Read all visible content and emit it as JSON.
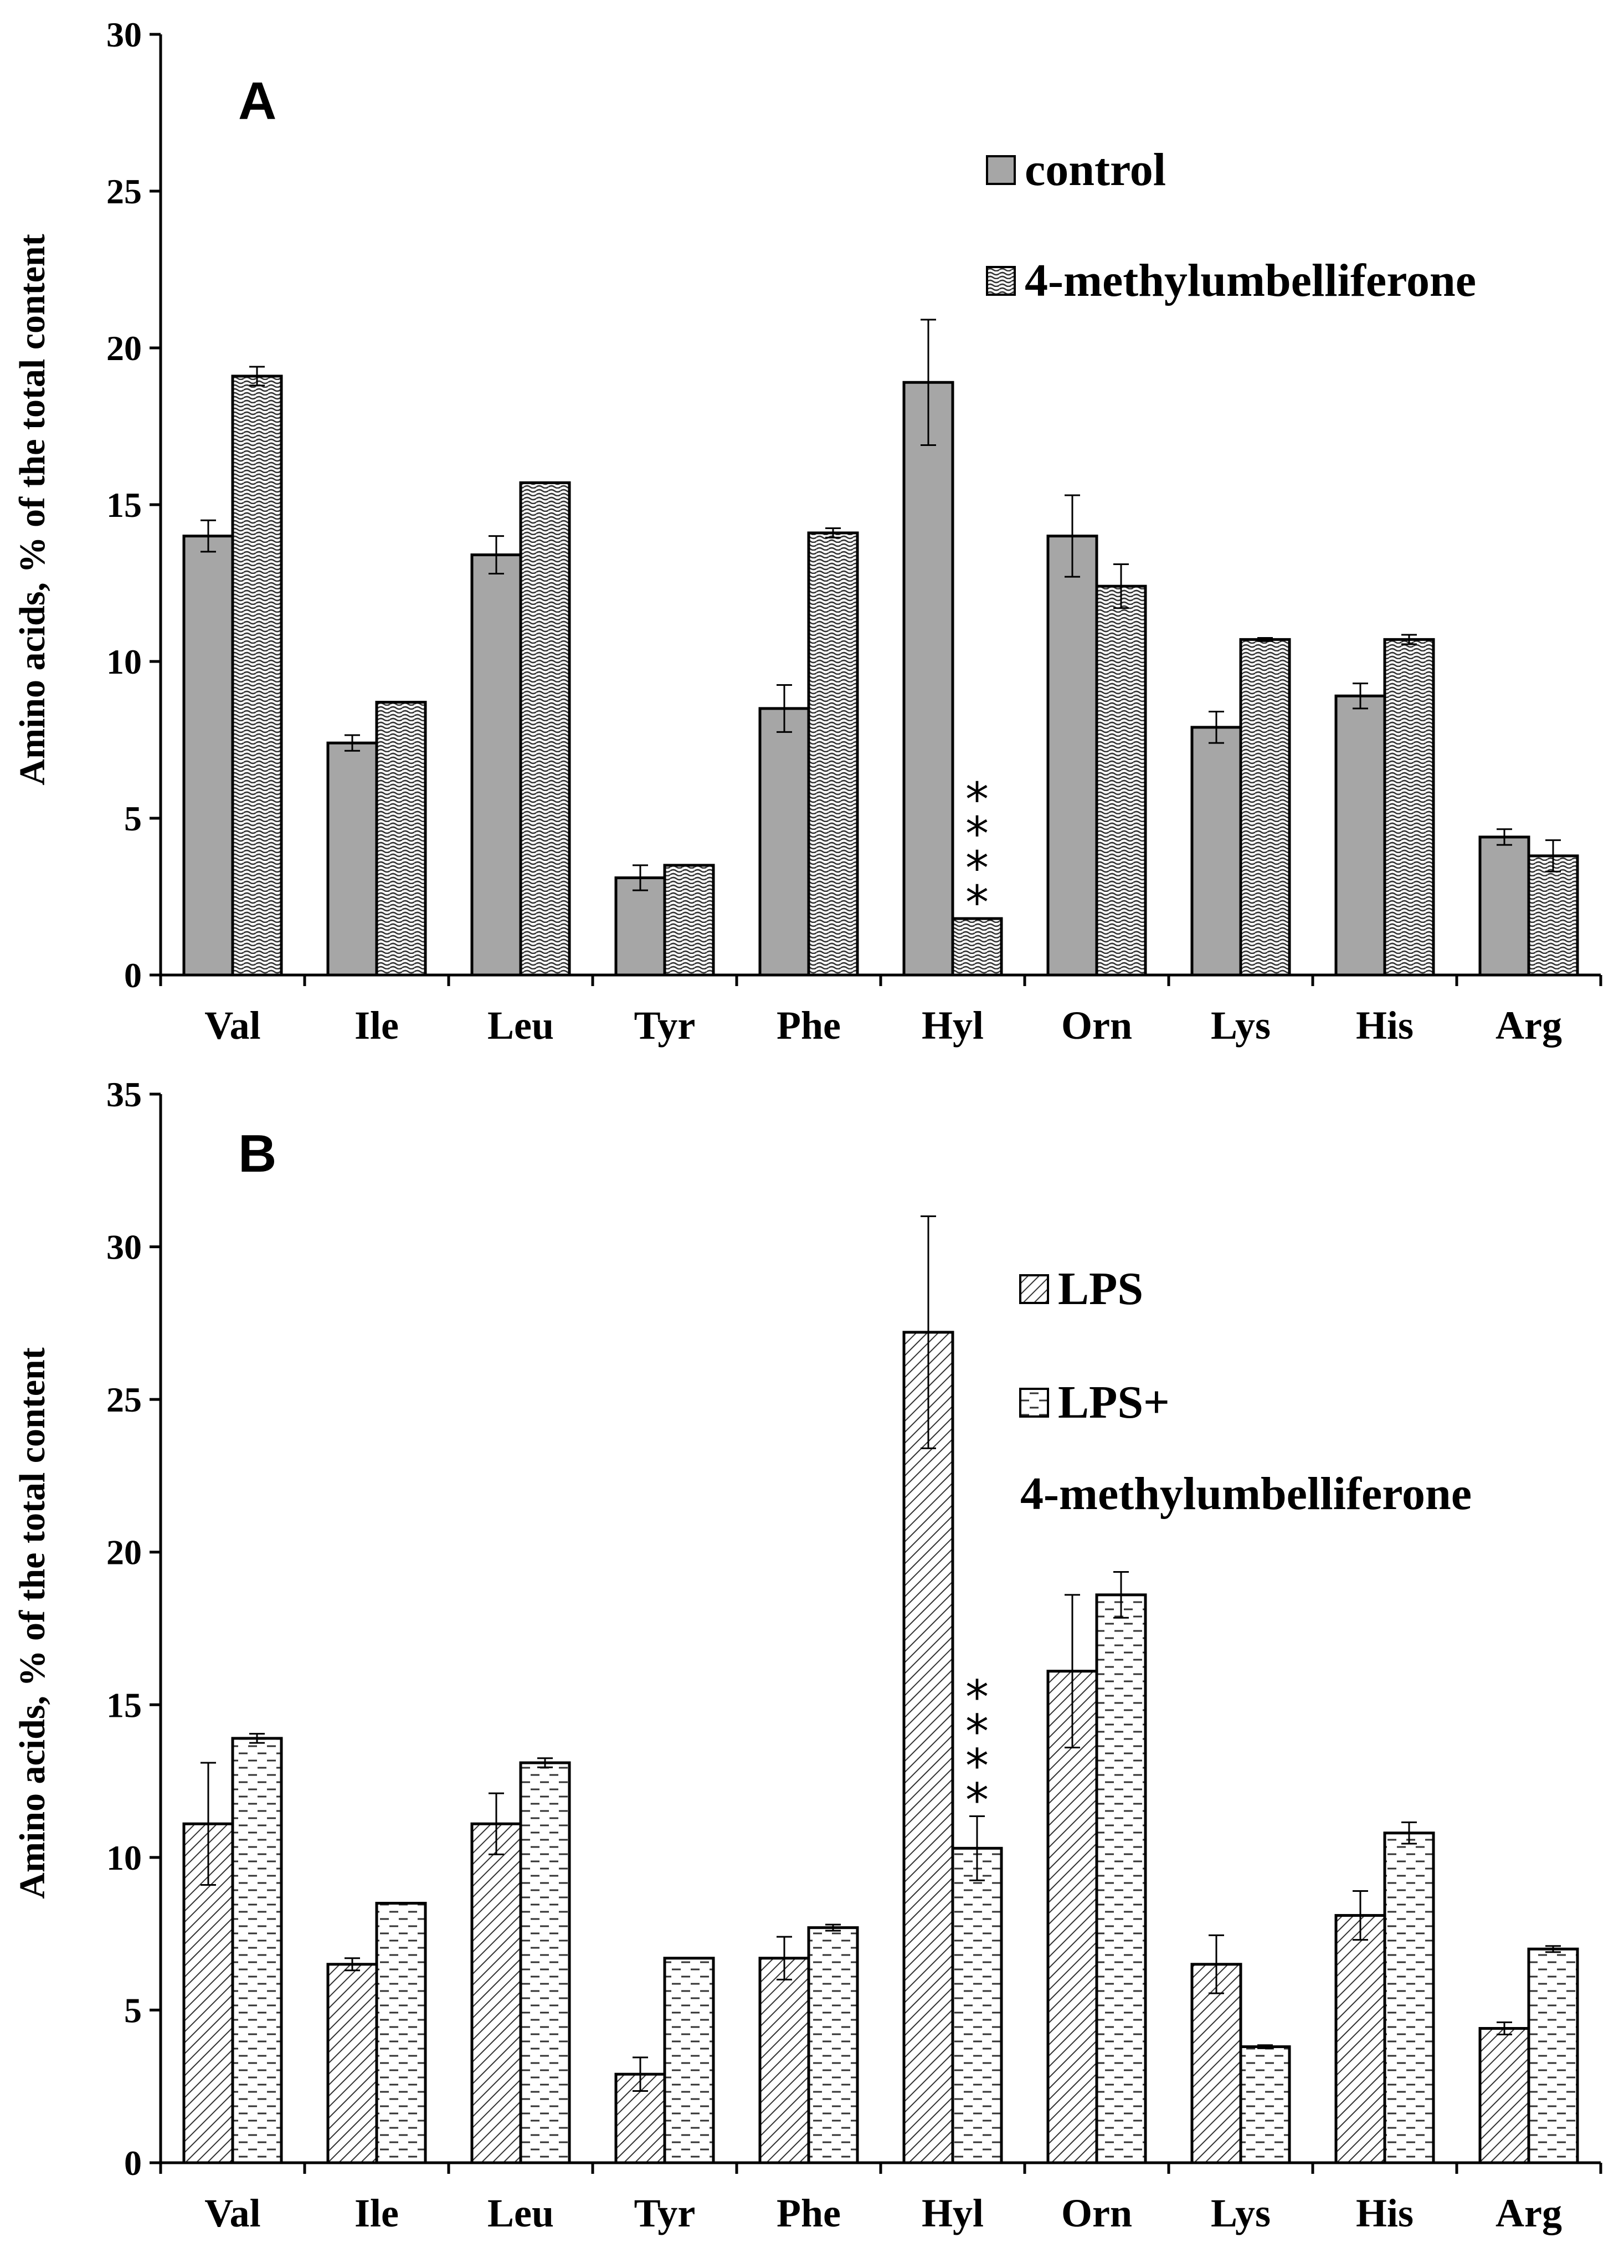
{
  "chart_data": [
    {
      "type": "bar",
      "panel": "A",
      "title": "",
      "xlabel": "",
      "ylabel": "Amino acids, % of the total content",
      "ylim": [
        0,
        30
      ],
      "yticks": [
        0,
        5,
        10,
        15,
        20,
        25,
        30
      ],
      "categories": [
        "Val",
        "Ile",
        "Leu",
        "Tyr",
        "Phe",
        "Hyl",
        "Orn",
        "Lys",
        "His",
        "Arg"
      ],
      "series": [
        {
          "name": "control",
          "pattern": "grey",
          "values": [
            14.0,
            7.4,
            13.4,
            3.1,
            8.5,
            18.9,
            14.0,
            7.9,
            8.9,
            4.4
          ],
          "errors": [
            0.5,
            0.25,
            0.6,
            0.4,
            0.75,
            2.0,
            1.3,
            0.5,
            0.4,
            0.25
          ]
        },
        {
          "name": "4-methylumbelliferone",
          "pattern": "wave",
          "values": [
            19.1,
            8.7,
            15.7,
            3.5,
            14.1,
            1.8,
            12.4,
            10.7,
            10.7,
            3.8
          ],
          "errors": [
            0.3,
            0.0,
            0.0,
            0.0,
            0.15,
            0.0,
            0.7,
            0.05,
            0.15,
            0.5
          ]
        }
      ],
      "annotations": [
        {
          "category": "Hyl",
          "text": "*",
          "count": 4
        }
      ],
      "legend_position": "top-right",
      "grid": false
    },
    {
      "type": "bar",
      "panel": "B",
      "title": "",
      "xlabel": "",
      "ylabel": "Amino acids, % of the total content",
      "ylim": [
        0,
        35
      ],
      "yticks": [
        0,
        5,
        10,
        15,
        20,
        25,
        30,
        35
      ],
      "categories": [
        "Val",
        "Ile",
        "Leu",
        "Tyr",
        "Phe",
        "Hyl",
        "Orn",
        "Lys",
        "His",
        "Arg"
      ],
      "series": [
        {
          "name": "LPS",
          "pattern": "diagonal",
          "values": [
            11.1,
            6.5,
            11.1,
            2.9,
            6.7,
            27.2,
            16.1,
            6.5,
            8.1,
            4.4
          ],
          "errors": [
            2.0,
            0.2,
            1.0,
            0.55,
            0.7,
            3.8,
            2.5,
            0.95,
            0.8,
            0.2
          ]
        },
        {
          "name": "LPS+ 4-methylumbelliferone",
          "legend_lines": [
            "LPS+",
            "4-methylumbelliferone"
          ],
          "pattern": "dashes",
          "values": [
            13.9,
            8.5,
            13.1,
            6.7,
            7.7,
            10.3,
            18.6,
            3.8,
            10.8,
            7.0
          ],
          "errors": [
            0.15,
            0.0,
            0.15,
            0.0,
            0.1,
            1.05,
            0.75,
            0.05,
            0.35,
            0.1
          ]
        }
      ],
      "annotations": [
        {
          "category": "Hyl",
          "text": "*",
          "count": 4
        }
      ],
      "legend_position": "top-right",
      "grid": false
    }
  ]
}
